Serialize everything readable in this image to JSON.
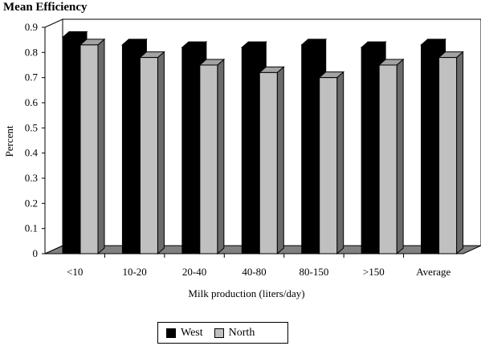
{
  "chart_data": {
    "type": "bar",
    "title": "Mean Efficiency",
    "xlabel": "Milk production (liters/day)",
    "ylabel": "Percent",
    "ylim": [
      0,
      0.9
    ],
    "yticks": [
      "0",
      "0.1",
      "0.2",
      "0.3",
      "0.4",
      "0.5",
      "0.6",
      "0.7",
      "0.8",
      "0.9"
    ],
    "categories": [
      "<10",
      "10-20",
      "20-40",
      "40-80",
      "80-150",
      ">150",
      "Average"
    ],
    "series": [
      {
        "name": "West",
        "values": [
          0.86,
          0.83,
          0.82,
          0.82,
          0.83,
          0.82,
          0.83
        ],
        "color": "#000000"
      },
      {
        "name": "North",
        "values": [
          0.83,
          0.78,
          0.75,
          0.72,
          0.7,
          0.75,
          0.78
        ],
        "color": "#c0c0c0"
      }
    ],
    "grid": false,
    "legend_position": "bottom",
    "style": "3d-clustered-column"
  }
}
